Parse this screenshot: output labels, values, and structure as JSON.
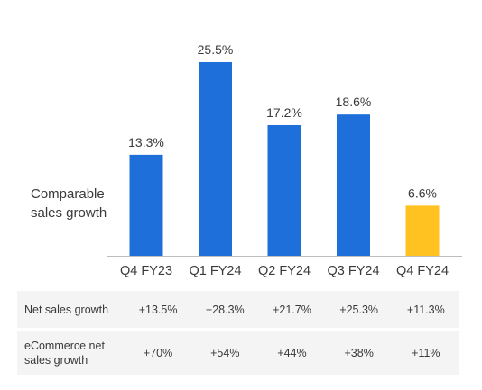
{
  "chart_data": {
    "type": "bar",
    "categories": [
      "Q4 FY23",
      "Q1 FY24",
      "Q2 FY24",
      "Q3 FY24",
      "Q4 FY24"
    ],
    "values": [
      13.3,
      25.5,
      17.2,
      18.6,
      6.6
    ],
    "value_labels": [
      "13.3%",
      "25.5%",
      "17.2%",
      "18.6%",
      "6.6%"
    ],
    "colors": [
      "#1e6fd9",
      "#1e6fd9",
      "#1e6fd9",
      "#1e6fd9",
      "#ffc220"
    ],
    "ylabel": "Comparable sales growth",
    "ylabel_lines": [
      "Comparable",
      "sales growth"
    ],
    "ylim": [
      0,
      25.5
    ],
    "grid": false,
    "axis_color": "#bdbdbd"
  },
  "table": {
    "rows": [
      {
        "label": "Net sales growth",
        "values": [
          "+13.5%",
          "+28.3%",
          "+21.7%",
          "+25.3%",
          "+11.3%"
        ]
      },
      {
        "label_lines": [
          "eCommerce net",
          "sales growth"
        ],
        "values": [
          "+70%",
          "+54%",
          "+44%",
          "+38%",
          "+11%"
        ]
      }
    ]
  }
}
